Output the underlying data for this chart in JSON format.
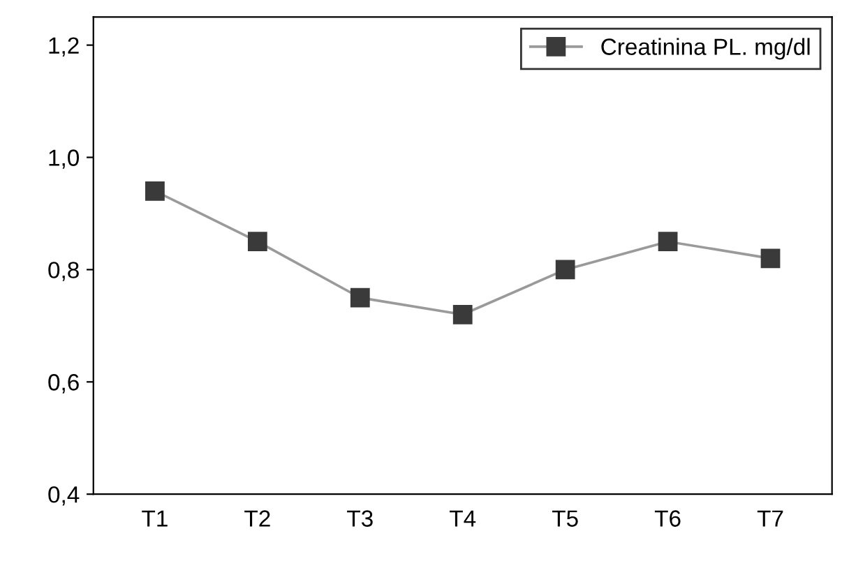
{
  "chart_data": {
    "type": "line",
    "categories": [
      "T1",
      "T2",
      "T3",
      "T4",
      "T5",
      "T6",
      "T7"
    ],
    "series": [
      {
        "name": "Creatinina PL. mg/dl",
        "color": "#3a3a3a",
        "values": [
          0.94,
          0.85,
          0.75,
          0.72,
          0.8,
          0.85,
          0.82
        ]
      }
    ],
    "ylim": [
      0.4,
      1.25
    ],
    "yticks": [
      {
        "value": 0.4,
        "label": "0,4"
      },
      {
        "value": 0.6,
        "label": "0,6"
      },
      {
        "value": 0.8,
        "label": "0,8"
      },
      {
        "value": 1.0,
        "label": "1,0"
      },
      {
        "value": 1.2,
        "label": "1,2"
      }
    ],
    "marker": "square",
    "line_style": "solid",
    "legend": "top right",
    "grid": false
  }
}
